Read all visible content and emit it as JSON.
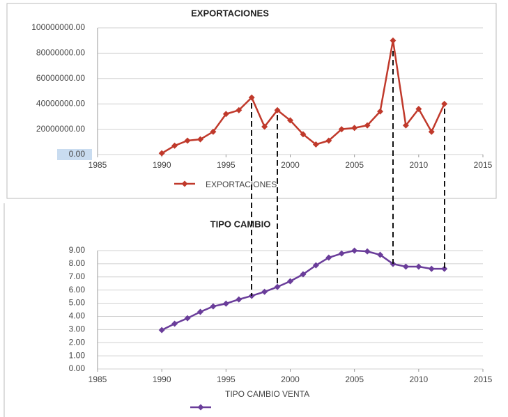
{
  "chart_data": [
    {
      "type": "line",
      "title": "EXPORTACIONES",
      "x": [
        1990,
        1991,
        1992,
        1993,
        1994,
        1995,
        1996,
        1997,
        1998,
        1999,
        2000,
        2001,
        2002,
        2003,
        2004,
        2005,
        2006,
        2007,
        2008,
        2009,
        2010,
        2011,
        2012
      ],
      "series": [
        {
          "name": "EXPORTACIONES",
          "color": "#c0392b",
          "values": [
            1000000,
            7000000,
            11000000,
            12000000,
            18000000,
            32000000,
            35000000,
            45000000,
            22000000,
            35000000,
            27000000,
            16000000,
            8000000,
            11000000,
            20000000,
            21000000,
            23000000,
            34000000,
            90000000,
            23000000,
            36000000,
            18000000,
            40000000
          ]
        }
      ],
      "xlim": [
        1985,
        2015
      ],
      "xticks": [
        1985,
        1990,
        1995,
        2000,
        2005,
        2010,
        2015
      ],
      "ylim": [
        0,
        100000000
      ],
      "yticks": [
        {
          "value": 0,
          "label": "0.00"
        },
        {
          "value": 20000000,
          "label": "20000000.00"
        },
        {
          "value": 40000000,
          "label": "40000000.00"
        },
        {
          "value": 60000000,
          "label": "60000000.00"
        },
        {
          "value": 80000000,
          "label": "80000000.00"
        },
        {
          "value": 100000000,
          "label": "100000000.00"
        }
      ],
      "grid": true
    },
    {
      "type": "line",
      "title": "TIPO CAMBIO",
      "x": [
        1990,
        1991,
        1992,
        1993,
        1994,
        1995,
        1996,
        1997,
        1998,
        1999,
        2000,
        2001,
        2002,
        2003,
        2004,
        2005,
        2006,
        2007,
        2008,
        2009,
        2010,
        2011,
        2012
      ],
      "series": [
        {
          "name": "TIPO CAMBIO VENTA",
          "color": "#6a3d9a",
          "values": [
            2.96,
            3.44,
            3.86,
            4.34,
            4.76,
            4.97,
            5.29,
            5.56,
            5.87,
            6.24,
            6.67,
            7.2,
            7.88,
            8.47,
            8.78,
            9.0,
            8.94,
            8.68,
            7.99,
            7.78,
            7.78,
            7.62,
            7.62
          ]
        }
      ],
      "xlim": [
        1985,
        2015
      ],
      "xticks": [
        1985,
        1990,
        1995,
        2000,
        2005,
        2010,
        2015
      ],
      "ylim": [
        0,
        9
      ],
      "yticks": [
        {
          "value": 0,
          "label": "0.00"
        },
        {
          "value": 1,
          "label": "1.00"
        },
        {
          "value": 2,
          "label": "2.00"
        },
        {
          "value": 3,
          "label": "3.00"
        },
        {
          "value": 4,
          "label": "4.00"
        },
        {
          "value": 5,
          "label": "5.00"
        },
        {
          "value": 6,
          "label": "6.00"
        },
        {
          "value": 7,
          "label": "7.00"
        },
        {
          "value": 8,
          "label": "8.00"
        },
        {
          "value": 9,
          "label": "9.00"
        }
      ],
      "grid": true
    }
  ]
}
